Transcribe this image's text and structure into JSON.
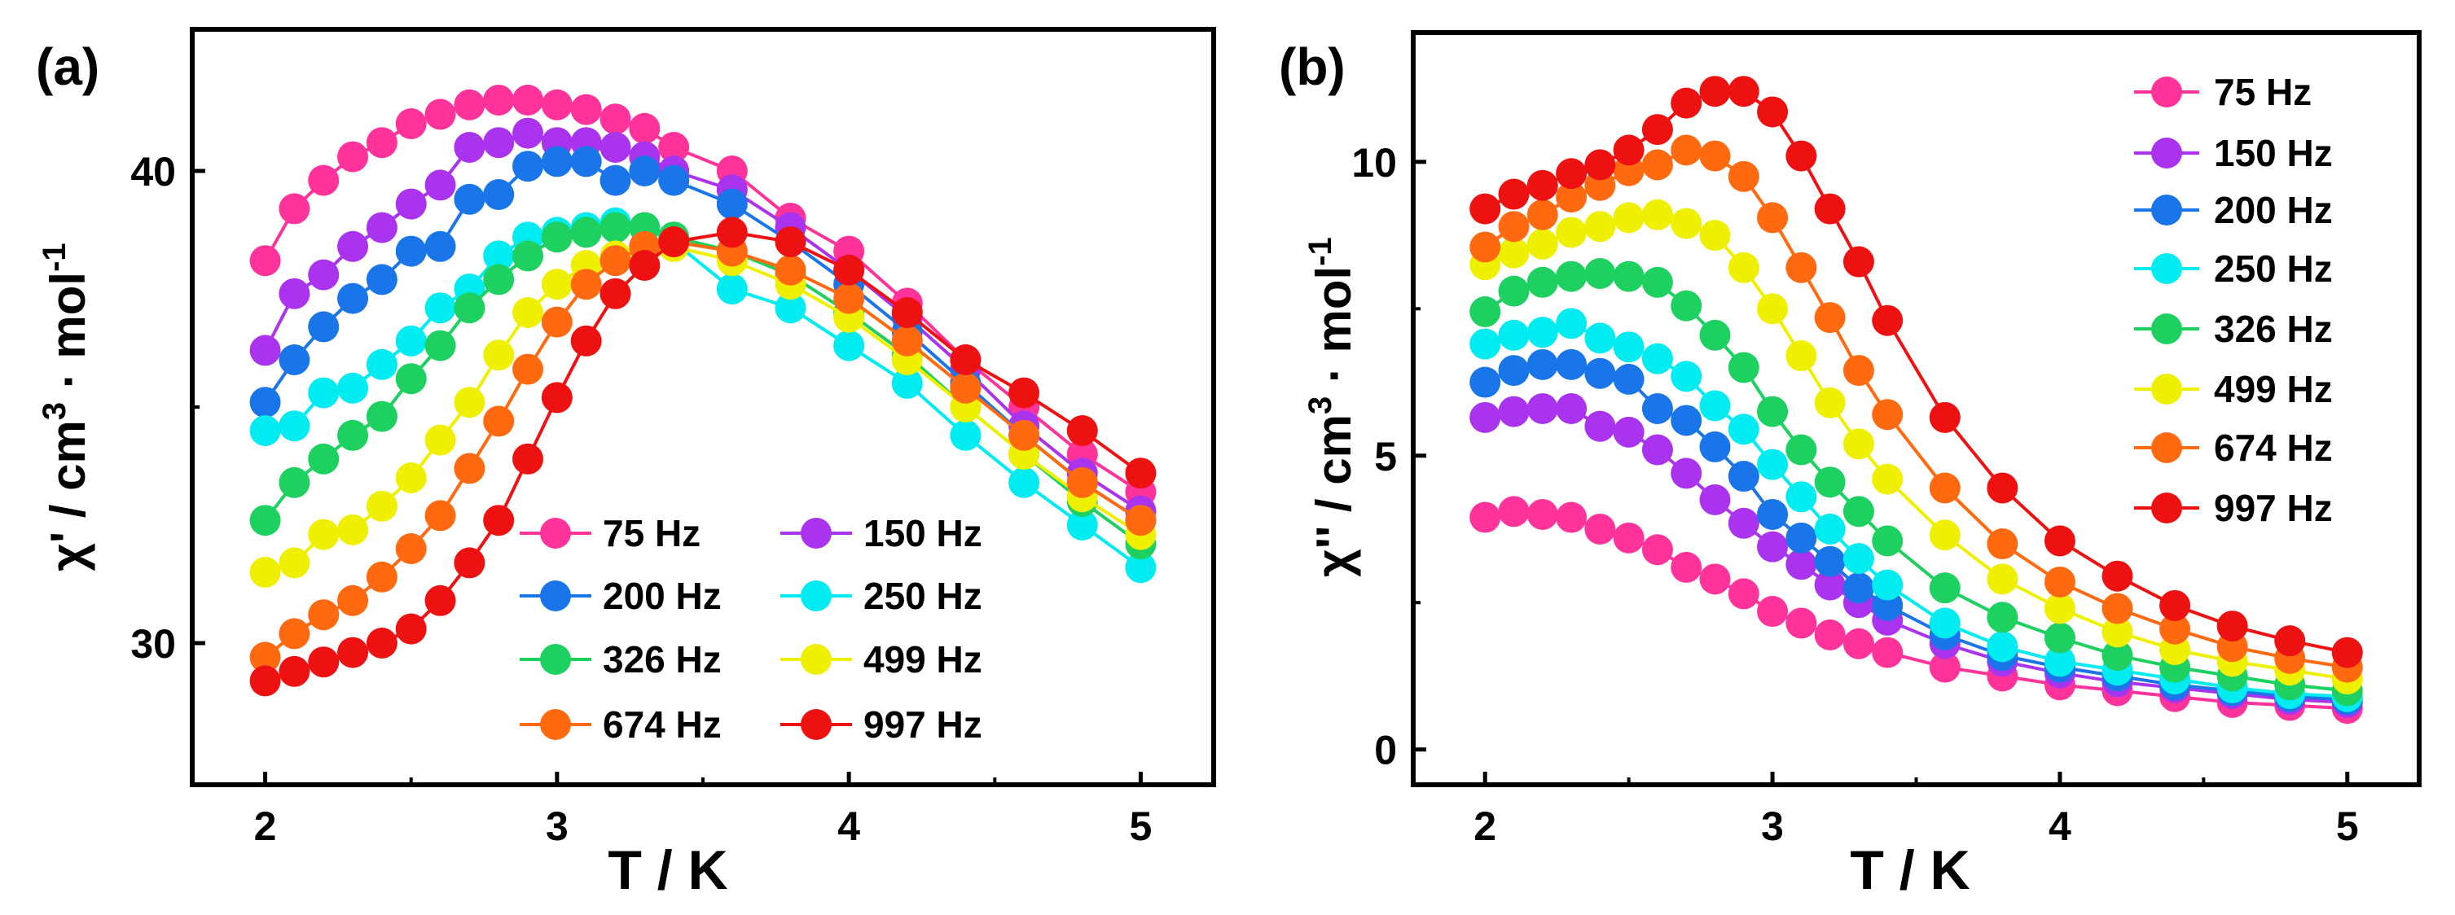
{
  "chart_data": [
    {
      "type": "line",
      "panel_label": "(a)",
      "xlabel": "T / K",
      "ylabel_parts": {
        "pre": "χ' / cm",
        "sup1": "3",
        "mid": "· mol",
        "sup2": "-1"
      },
      "xlim": [
        1.75,
        5.25
      ],
      "ylim": [
        27.0,
        43.0
      ],
      "xticks": [
        2,
        3,
        4,
        5
      ],
      "yticks": [
        30,
        40
      ],
      "legend_position": "lower-center, two columns",
      "x": [
        2.0,
        2.1,
        2.2,
        2.3,
        2.4,
        2.5,
        2.6,
        2.7,
        2.8,
        2.9,
        3.0,
        3.1,
        3.2,
        3.3,
        3.4,
        3.6,
        3.8,
        4.0,
        4.2,
        4.4,
        4.6,
        4.8,
        5.0
      ],
      "series": [
        {
          "name": "75 Hz",
          "color": "#ff3399",
          "values": [
            38.1,
            39.2,
            39.8,
            40.3,
            40.6,
            41.0,
            41.2,
            41.4,
            41.5,
            41.5,
            41.4,
            41.3,
            41.1,
            40.9,
            40.5,
            40.0,
            39.0,
            38.3,
            37.2,
            36.0,
            35.0,
            34.0,
            33.2
          ]
        },
        {
          "name": "150 Hz",
          "color": "#aa33ee",
          "values": [
            36.2,
            37.4,
            37.8,
            38.4,
            38.8,
            39.3,
            39.7,
            40.5,
            40.6,
            40.8,
            40.6,
            40.6,
            40.5,
            40.3,
            40.0,
            39.6,
            38.8,
            37.9,
            36.9,
            35.8,
            34.6,
            33.6,
            32.8
          ]
        },
        {
          "name": "200 Hz",
          "color": "#1a75e8",
          "values": [
            35.1,
            36.0,
            36.7,
            37.3,
            37.7,
            38.3,
            38.4,
            39.4,
            39.5,
            40.1,
            40.2,
            40.2,
            39.8,
            40.0,
            39.8,
            39.3,
            38.5,
            37.6,
            36.6,
            35.5,
            34.4,
            33.4,
            32.6
          ]
        },
        {
          "name": "250 Hz",
          "color": "#00ecf0",
          "values": [
            34.5,
            34.6,
            35.3,
            35.4,
            35.9,
            36.4,
            37.1,
            37.5,
            38.2,
            38.6,
            38.7,
            38.8,
            38.9,
            38.8,
            38.5,
            37.5,
            37.1,
            36.3,
            35.5,
            34.4,
            33.4,
            32.5,
            31.6
          ]
        },
        {
          "name": "326 Hz",
          "color": "#1ed060",
          "values": [
            32.6,
            33.4,
            33.9,
            34.4,
            34.8,
            35.6,
            36.3,
            37.1,
            37.7,
            38.2,
            38.6,
            38.7,
            38.8,
            38.8,
            38.6,
            38.3,
            37.8,
            37.0,
            36.1,
            35.0,
            34.0,
            33.0,
            32.1
          ]
        },
        {
          "name": "499 Hz",
          "color": "#eef000",
          "values": [
            31.5,
            31.7,
            32.3,
            32.4,
            32.9,
            33.5,
            34.3,
            35.1,
            36.1,
            37.0,
            37.6,
            38.0,
            38.2,
            38.3,
            38.4,
            38.1,
            37.6,
            36.9,
            36.0,
            35.0,
            34.0,
            33.1,
            32.3
          ]
        },
        {
          "name": "674 Hz",
          "color": "#ff6a10",
          "values": [
            29.7,
            30.2,
            30.6,
            30.9,
            31.4,
            32.0,
            32.7,
            33.7,
            34.7,
            35.8,
            36.8,
            37.6,
            38.1,
            38.4,
            38.5,
            38.3,
            37.9,
            37.3,
            36.4,
            35.4,
            34.4,
            33.4,
            32.6
          ]
        },
        {
          "name": "997 Hz",
          "color": "#ee1111",
          "values": [
            29.2,
            29.4,
            29.6,
            29.8,
            30.0,
            30.3,
            30.9,
            31.7,
            32.6,
            33.9,
            35.2,
            36.4,
            37.4,
            38.0,
            38.5,
            38.7,
            38.5,
            37.9,
            37.0,
            36.0,
            35.3,
            34.5,
            33.6
          ]
        }
      ]
    },
    {
      "type": "line",
      "panel_label": "(b)",
      "xlabel": "T / K",
      "ylabel_parts": {
        "pre": "χ'' / cm",
        "sup1": "3",
        "mid": "· mol",
        "sup2": "-1"
      },
      "xlim": [
        1.75,
        5.25
      ],
      "ylim": [
        -0.6,
        12.2
      ],
      "xticks": [
        2,
        3,
        4,
        5
      ],
      "yticks": [
        0,
        5,
        10
      ],
      "legend_position": "top-right, one column",
      "x": [
        2.0,
        2.1,
        2.2,
        2.3,
        2.4,
        2.5,
        2.6,
        2.7,
        2.8,
        2.9,
        3.0,
        3.1,
        3.2,
        3.3,
        3.4,
        3.6,
        3.8,
        4.0,
        4.2,
        4.4,
        4.6,
        4.8,
        5.0
      ],
      "series": [
        {
          "name": "75  Hz",
          "color": "#ff3399",
          "values": [
            3.95,
            4.05,
            4.0,
            3.95,
            3.75,
            3.6,
            3.4,
            3.1,
            2.9,
            2.65,
            2.35,
            2.15,
            1.95,
            1.8,
            1.65,
            1.4,
            1.25,
            1.1,
            1.0,
            0.9,
            0.8,
            0.75,
            0.7
          ]
        },
        {
          "name": "150 Hz",
          "color": "#aa33ee",
          "values": [
            5.65,
            5.75,
            5.8,
            5.8,
            5.5,
            5.4,
            5.1,
            4.7,
            4.25,
            3.85,
            3.45,
            3.15,
            2.8,
            2.5,
            2.2,
            1.8,
            1.5,
            1.3,
            1.15,
            1.05,
            0.95,
            0.85,
            0.8
          ]
        },
        {
          "name": "200 Hz",
          "color": "#1a75e8",
          "values": [
            6.25,
            6.45,
            6.55,
            6.55,
            6.4,
            6.3,
            5.8,
            5.6,
            5.15,
            4.65,
            4.0,
            3.6,
            3.2,
            2.75,
            2.45,
            1.95,
            1.6,
            1.4,
            1.25,
            1.1,
            1.0,
            0.9,
            0.85
          ]
        },
        {
          "name": "250 Hz",
          "color": "#00ecf0",
          "values": [
            6.9,
            7.05,
            7.1,
            7.25,
            7.0,
            6.85,
            6.65,
            6.35,
            5.85,
            5.45,
            4.85,
            4.3,
            3.75,
            3.25,
            2.8,
            2.15,
            1.75,
            1.5,
            1.35,
            1.2,
            1.05,
            0.95,
            0.9
          ]
        },
        {
          "name": "326 Hz",
          "color": "#1ed060",
          "values": [
            7.45,
            7.8,
            7.95,
            8.05,
            8.1,
            8.05,
            7.95,
            7.55,
            7.05,
            6.5,
            5.75,
            5.1,
            4.55,
            4.05,
            3.55,
            2.75,
            2.25,
            1.9,
            1.6,
            1.4,
            1.25,
            1.1,
            1.0
          ]
        },
        {
          "name": "499 Hz",
          "color": "#eef000",
          "values": [
            8.25,
            8.45,
            8.6,
            8.8,
            8.9,
            9.05,
            9.1,
            8.95,
            8.75,
            8.2,
            7.5,
            6.7,
            5.9,
            5.2,
            4.6,
            3.65,
            2.9,
            2.4,
            2.0,
            1.7,
            1.5,
            1.35,
            1.2
          ]
        },
        {
          "name": "674 Hz",
          "color": "#ff6a10",
          "values": [
            8.55,
            8.9,
            9.1,
            9.4,
            9.6,
            9.85,
            9.95,
            10.2,
            10.1,
            9.75,
            9.05,
            8.2,
            7.35,
            6.45,
            5.7,
            4.45,
            3.5,
            2.85,
            2.4,
            2.05,
            1.75,
            1.55,
            1.4
          ]
        },
        {
          "name": "997 Hz",
          "color": "#ee1111",
          "values": [
            9.2,
            9.45,
            9.6,
            9.8,
            9.95,
            10.2,
            10.55,
            11.0,
            11.2,
            11.2,
            10.85,
            10.1,
            9.2,
            8.3,
            7.3,
            5.65,
            4.45,
            3.55,
            2.95,
            2.45,
            2.1,
            1.85,
            1.65
          ]
        }
      ]
    }
  ]
}
